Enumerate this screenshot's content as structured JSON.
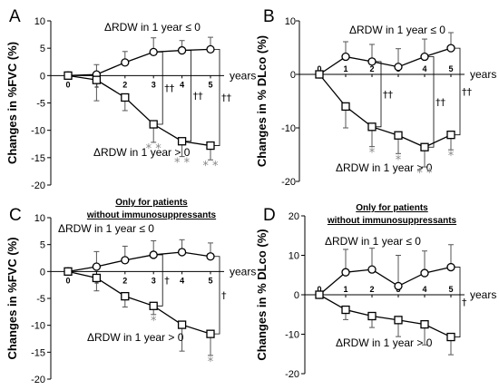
{
  "chart_data": [
    {
      "type": "line",
      "panel": "A",
      "ylabel": "Changes in %FVC (%)",
      "xlabel": "years",
      "ylim": [
        -20,
        10
      ],
      "yticks": [
        "10",
        "5",
        "0",
        "-5",
        "-10",
        "-15",
        "-20"
      ],
      "x": [
        0,
        1,
        2,
        3,
        4,
        5
      ],
      "xticks": [
        "0",
        "1",
        "2",
        "3",
        "4",
        "5"
      ],
      "series": [
        {
          "label": "ΔRDW in 1 year ≤ 0",
          "marker": "circle",
          "values": [
            0,
            0.2,
            2.4,
            4.3,
            4.6,
            4.8
          ],
          "err": [
            0,
            1.8,
            2.0,
            2.6,
            1.8,
            2.2
          ]
        },
        {
          "label": "ΔRDW in 1 year > 0",
          "marker": "square",
          "values": [
            0,
            -0.8,
            -4.0,
            -8.9,
            -12.0,
            -12.8
          ],
          "err": [
            0,
            3.8,
            2.4,
            3.3,
            2.8,
            2.6
          ]
        }
      ],
      "significance": [
        {
          "x": 3,
          "text": "††"
        },
        {
          "x": 4,
          "text": "††"
        },
        {
          "x": 5,
          "text": "††"
        }
      ],
      "stars": [
        {
          "x": 3,
          "text": "* *"
        },
        {
          "x": 4,
          "text": "* *"
        },
        {
          "x": 5,
          "text": "* *"
        }
      ]
    },
    {
      "type": "line",
      "panel": "B",
      "ylabel": "Changes in % DLco (%)",
      "xlabel": "years",
      "ylim": [
        -20,
        10
      ],
      "yticks": [
        "10",
        "0",
        "-10",
        "-20"
      ],
      "x": [
        0,
        1,
        2,
        3,
        4,
        5
      ],
      "xticks": [
        "0",
        "1",
        "2",
        "3",
        "4",
        "5"
      ],
      "series": [
        {
          "label": "ΔRDW in 1 year ≤ 0",
          "marker": "circle",
          "values": [
            0,
            3.3,
            2.4,
            1.4,
            3.3,
            4.9
          ],
          "err": [
            0,
            2.8,
            3.2,
            3.4,
            3.3,
            2.9
          ]
        },
        {
          "label": "ΔRDW in 1 year > 0",
          "marker": "square",
          "values": [
            0,
            -6.0,
            -9.8,
            -11.4,
            -13.6,
            -11.3
          ],
          "err": [
            0,
            4.0,
            3.7,
            3.4,
            3.7,
            2.8
          ]
        }
      ],
      "significance": [
        {
          "x": 2,
          "text": "††"
        },
        {
          "x": 4,
          "text": "††"
        },
        {
          "x": 5,
          "text": "††"
        }
      ],
      "stars": [
        {
          "x": 2,
          "text": "*"
        },
        {
          "x": 3,
          "text": "*"
        },
        {
          "x": 4,
          "text": "* *"
        },
        {
          "x": 5,
          "text": "*"
        }
      ]
    },
    {
      "type": "line",
      "panel": "C",
      "note": [
        "Only for patients",
        "without immunosuppressants"
      ],
      "ylabel": "Changes in %FVC (%)",
      "xlabel": "years",
      "ylim": [
        -20,
        10
      ],
      "yticks": [
        "10",
        "5",
        "0",
        "-5",
        "-10",
        "-15",
        "-20"
      ],
      "x": [
        0,
        1,
        2,
        3,
        4,
        5
      ],
      "xticks": [
        "0",
        "1",
        "2",
        "3",
        "4",
        "5"
      ],
      "series": [
        {
          "label": "ΔRDW in 1 year ≤ 0",
          "marker": "circle",
          "values": [
            0,
            0.9,
            2.1,
            3.1,
            3.6,
            2.8
          ],
          "err": [
            0,
            2.8,
            2.6,
            2.6,
            2.3,
            2.5
          ]
        },
        {
          "label": "ΔRDW in 1 year > 0",
          "marker": "square",
          "values": [
            0,
            -1.2,
            -4.6,
            -6.4,
            -9.9,
            -11.6
          ],
          "err": [
            0,
            2.4,
            2.0,
            1.6,
            4.9,
            4.0
          ]
        }
      ],
      "significance": [
        {
          "x": 3,
          "text": "†"
        },
        {
          "x": 5,
          "text": "†"
        }
      ],
      "stars": [
        {
          "x": 3,
          "text": "*"
        },
        {
          "x": 5,
          "text": "*"
        }
      ]
    },
    {
      "type": "line",
      "panel": "D",
      "note": [
        "Only for patients",
        "without immunosuppressants"
      ],
      "ylabel": "Changes in % DLco (%)",
      "xlabel": "years",
      "ylim": [
        -20,
        20
      ],
      "yticks": [
        "20",
        "10",
        "0",
        "-10",
        "-20"
      ],
      "x": [
        0,
        1,
        2,
        3,
        4,
        5
      ],
      "xticks": [
        "0",
        "1",
        "2",
        "3",
        "4",
        "5"
      ],
      "series": [
        {
          "label": "ΔRDW in 1 year ≤ 0",
          "marker": "circle",
          "values": [
            0,
            5.7,
            6.4,
            2.2,
            5.5,
            7.0
          ],
          "err": [
            0,
            5.8,
            5.4,
            7.8,
            5.6,
            5.7
          ]
        },
        {
          "label": "ΔRDW in 1 year > 0",
          "marker": "square",
          "values": [
            0,
            -3.8,
            -5.4,
            -6.4,
            -7.5,
            -10.7
          ],
          "err": [
            0,
            2.5,
            2.9,
            4.2,
            5.2,
            4.5
          ]
        }
      ],
      "significance": [
        {
          "x": 5,
          "text": "†"
        }
      ],
      "stars": []
    }
  ]
}
